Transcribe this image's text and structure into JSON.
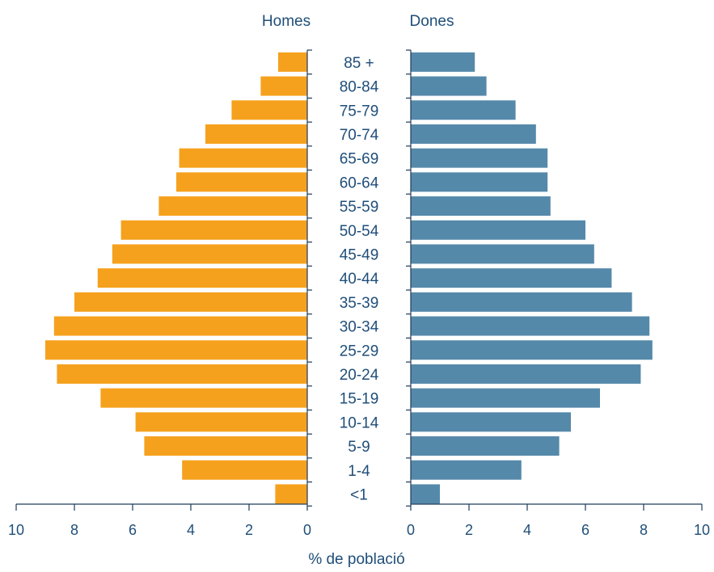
{
  "chart_data": {
    "type": "bar",
    "orientation": "horizontal",
    "layout": "population-pyramid",
    "categories": [
      "<1",
      "1-4",
      "5-9",
      "10-14",
      "15-19",
      "20-24",
      "25-29",
      "30-34",
      "35-39",
      "40-44",
      "45-49",
      "50-54",
      "55-59",
      "60-64",
      "65-69",
      "70-74",
      "75-79",
      "80-84",
      "85 +"
    ],
    "series": [
      {
        "name": "Homes",
        "color": "#f5a11e",
        "values": [
          1.1,
          4.3,
          5.6,
          5.9,
          7.1,
          8.6,
          9.0,
          8.7,
          8.0,
          7.2,
          6.7,
          6.4,
          5.1,
          4.5,
          4.4,
          3.5,
          2.6,
          1.6,
          1.0
        ]
      },
      {
        "name": "Dones",
        "color": "#5589aa",
        "values": [
          1.0,
          3.8,
          5.1,
          5.5,
          6.5,
          7.9,
          8.3,
          8.2,
          7.6,
          6.9,
          6.3,
          6.0,
          4.8,
          4.7,
          4.7,
          4.3,
          3.6,
          2.6,
          2.2
        ]
      }
    ],
    "xlim": [
      0,
      10
    ],
    "xticks": [
      "0",
      "2",
      "4",
      "6",
      "8",
      "10"
    ],
    "xlabel": "% de població",
    "ylabel": "",
    "title": "",
    "grid": false
  }
}
